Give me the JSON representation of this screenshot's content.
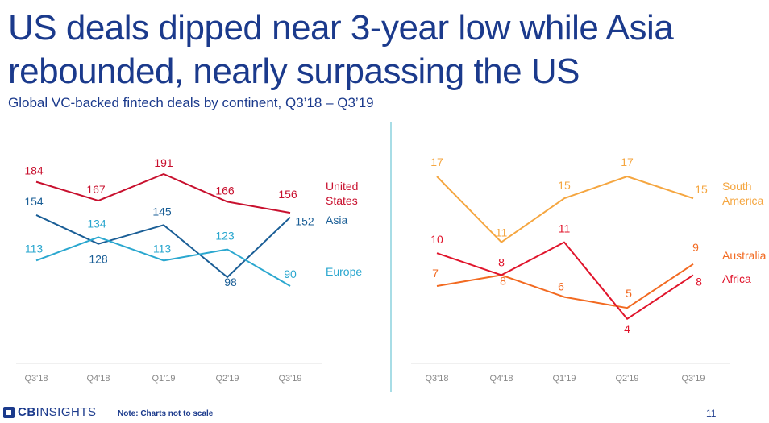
{
  "title": "US deals dipped near 3-year low while Asia rebounded, nearly surpassing the US",
  "subtitle": "Global VC-backed fintech deals by continent, Q3’18 – Q3’19",
  "footer": {
    "logo_bold": "CB",
    "logo_rest": "INSIGHTS",
    "note": "Note: Charts not to scale",
    "page_number": "11"
  },
  "chart_data": [
    {
      "type": "line",
      "categories": [
        "Q3'18",
        "Q4'18",
        "Q1'19",
        "Q2'19",
        "Q3'19"
      ],
      "series": [
        {
          "name": "United States",
          "values": [
            184,
            167,
            191,
            166,
            156
          ],
          "color": "#c8102e"
        },
        {
          "name": "Asia",
          "values": [
            154,
            128,
            145,
            98,
            152
          ],
          "color": "#1a5e96"
        },
        {
          "name": "Europe",
          "values": [
            113,
            134,
            113,
            123,
            90
          ],
          "color": "#2aa7cf"
        }
      ]
    },
    {
      "type": "line",
      "categories": [
        "Q3'18",
        "Q4'18",
        "Q1'19",
        "Q2'19",
        "Q3'19"
      ],
      "series": [
        {
          "name": "South America",
          "values": [
            17,
            11,
            15,
            17,
            15
          ],
          "color": "#f5a640"
        },
        {
          "name": "Australia",
          "values": [
            7,
            8,
            6,
            5,
            9
          ],
          "color": "#f26a21"
        },
        {
          "name": "Africa",
          "values": [
            10,
            8,
            11,
            4,
            8
          ],
          "color": "#e0142b"
        }
      ]
    }
  ]
}
